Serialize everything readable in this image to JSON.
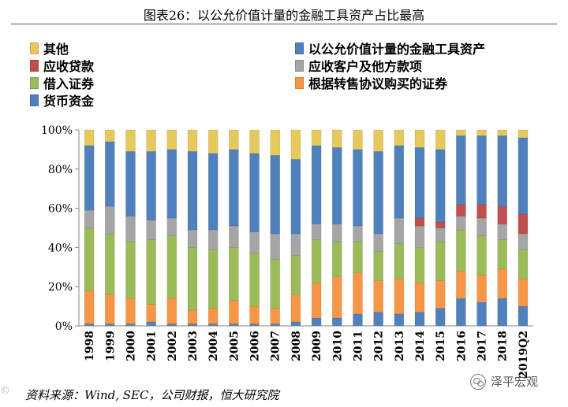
{
  "title": "图表26：以公允价值计量的金融工具资产占比最高",
  "source": "资料来源：Wind, SEC，公司财报，恒大研究院",
  "watermark": "泽平宏观",
  "edge_mark": "©",
  "icons": {
    "watermark": "wechat-icon"
  },
  "colors": {
    "cash": "#4f81bd",
    "reverse_repo": "#f79646",
    "borrowed_sec": "#9bbb59",
    "receivable_customer": "#a5a5a5",
    "receivable_other": "#c0504d",
    "fair_value": "#4f81bd",
    "other": "#e6c95c"
  },
  "chart_data": {
    "type": "bar",
    "stacked": true,
    "categories": [
      "1998",
      "1999",
      "2000",
      "2001",
      "2002",
      "2003",
      "2004",
      "2005",
      "2006",
      "2007",
      "2008",
      "2009",
      "2010",
      "2011",
      "2012",
      "2013",
      "2014",
      "2015",
      "2016",
      "2017",
      "2018",
      "2019Q2"
    ],
    "ylim": [
      0,
      100
    ],
    "yticks": [
      "0%",
      "20%",
      "40%",
      "60%",
      "80%",
      "100%"
    ],
    "grid": false,
    "legend": "top, two columns",
    "series": [
      {
        "name": "货币资金",
        "color": "#4f81bd",
        "values": [
          1,
          1,
          1,
          2,
          1,
          1,
          1,
          1,
          1,
          1,
          2,
          4,
          4,
          6,
          7,
          6,
          7,
          9,
          14,
          12,
          14,
          10
        ]
      },
      {
        "name": "根据转售协议购买的证券",
        "color": "#f79646",
        "values": [
          17,
          15,
          13,
          9,
          13,
          7,
          8,
          12,
          9,
          8,
          14,
          18,
          21,
          21,
          16,
          18,
          15,
          14,
          14,
          14,
          15,
          14
        ]
      },
      {
        "name": "借入证券",
        "color": "#9bbb59",
        "values": [
          32,
          31,
          29,
          33,
          32,
          32,
          30,
          27,
          27,
          25,
          20,
          22,
          18,
          16,
          15,
          18,
          18,
          20,
          21,
          20,
          15,
          15
        ]
      },
      {
        "name": "应收客户及他方款项",
        "color": "#a5a5a5",
        "values": [
          9,
          14,
          13,
          10,
          9,
          9,
          10,
          11,
          11,
          13,
          11,
          8,
          9,
          8,
          9,
          13,
          11,
          7,
          7,
          9,
          8,
          8
        ]
      },
      {
        "name": "应收贷款",
        "color": "#c0504d",
        "values": [
          0,
          0,
          0,
          0,
          0,
          0,
          0,
          0,
          0,
          0,
          0,
          0,
          0,
          0,
          0,
          0,
          4,
          3,
          6,
          7,
          9,
          10
        ]
      },
      {
        "name": "以公允价值计量的金融工具资产",
        "color": "#4f81bd",
        "values": [
          33,
          33,
          33,
          35,
          35,
          40,
          39,
          39,
          40,
          40,
          38,
          40,
          39,
          39,
          42,
          37,
          36,
          37,
          35,
          35,
          36,
          39
        ]
      },
      {
        "name": "其他",
        "color": "#e6c95c",
        "values": [
          8,
          6,
          11,
          11,
          10,
          11,
          12,
          10,
          12,
          13,
          15,
          8,
          9,
          10,
          11,
          8,
          9,
          10,
          3,
          3,
          3,
          4
        ]
      }
    ]
  }
}
